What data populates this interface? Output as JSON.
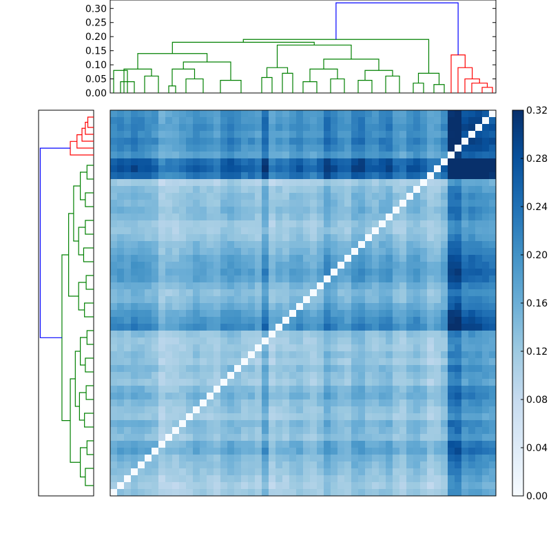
{
  "chart_data": [
    {
      "type": "dendrogram",
      "panel": "top",
      "axis": {
        "ylim": [
          0,
          0.33
        ],
        "ticks": [
          0,
          0.05,
          0.1,
          0.15,
          0.2,
          0.25,
          0.3
        ],
        "tick_labels": [
          "0.00",
          "0.05",
          "0.10",
          "0.15",
          "0.20",
          "0.25",
          "0.30"
        ]
      },
      "n_leaves": 56,
      "link_colors": {
        "left_cluster": "#008000",
        "right_cluster": "#ff0000",
        "root": "#0000ff"
      },
      "merges": [
        {
          "a": [
            0,
            0
          ],
          "b": [
            2,
            2
          ],
          "h": 0.08,
          "c": "#008000"
        },
        {
          "a": [
            1,
            1
          ],
          "b": [
            3,
            3
          ],
          "h": 0.04,
          "c": "#008000"
        },
        {
          "a": [
            4,
            5
          ],
          "b": [
            6,
            7
          ],
          "h": 0.06,
          "c": "#008000"
        },
        {
          "a": [
            0,
            3
          ],
          "b": [
            4,
            7
          ],
          "h": 0.085,
          "c": "#008000"
        },
        {
          "a": [
            8,
            8
          ],
          "b": [
            9,
            9
          ],
          "h": 0.025,
          "c": "#008000"
        },
        {
          "a": [
            10,
            11
          ],
          "b": [
            12,
            14
          ],
          "h": 0.05,
          "c": "#008000"
        },
        {
          "a": [
            8,
            9
          ],
          "b": [
            10,
            14
          ],
          "h": 0.085,
          "c": "#008000"
        },
        {
          "a": [
            15,
            16
          ],
          "b": [
            17,
            20
          ],
          "h": 0.045,
          "c": "#008000"
        },
        {
          "a": [
            8,
            14
          ],
          "b": [
            15,
            20
          ],
          "h": 0.11,
          "c": "#008000"
        },
        {
          "a": [
            0,
            7
          ],
          "b": [
            8,
            20
          ],
          "h": 0.14,
          "c": "#008000"
        },
        {
          "a": [
            21,
            22
          ],
          "b": [
            23,
            23
          ],
          "h": 0.055,
          "c": "#008000"
        },
        {
          "a": [
            24,
            25
          ],
          "b": [
            26,
            26
          ],
          "h": 0.07,
          "c": "#008000"
        },
        {
          "a": [
            21,
            23
          ],
          "b": [
            24,
            26
          ],
          "h": 0.09,
          "c": "#008000"
        },
        {
          "a": [
            27,
            28
          ],
          "b": [
            29,
            30
          ],
          "h": 0.04,
          "c": "#008000"
        },
        {
          "a": [
            31,
            32
          ],
          "b": [
            33,
            34
          ],
          "h": 0.05,
          "c": "#008000"
        },
        {
          "a": [
            27,
            30
          ],
          "b": [
            31,
            34
          ],
          "h": 0.085,
          "c": "#008000"
        },
        {
          "a": [
            35,
            36
          ],
          "b": [
            37,
            38
          ],
          "h": 0.045,
          "c": "#008000"
        },
        {
          "a": [
            39,
            40
          ],
          "b": [
            41,
            42
          ],
          "h": 0.06,
          "c": "#008000"
        },
        {
          "a": [
            35,
            38
          ],
          "b": [
            39,
            42
          ],
          "h": 0.08,
          "c": "#008000"
        },
        {
          "a": [
            27,
            34
          ],
          "b": [
            35,
            42
          ],
          "h": 0.12,
          "c": "#008000"
        },
        {
          "a": [
            21,
            26
          ],
          "b": [
            27,
            42
          ],
          "h": 0.17,
          "c": "#008000"
        },
        {
          "a": [
            0,
            20
          ],
          "b": [
            21,
            42
          ],
          "h": 0.18,
          "c": "#008000"
        },
        {
          "a": [
            43,
            44
          ],
          "b": [
            45,
            45
          ],
          "h": 0.035,
          "c": "#008000"
        },
        {
          "a": [
            46,
            47
          ],
          "b": [
            48,
            48
          ],
          "h": 0.03,
          "c": "#008000"
        },
        {
          "a": [
            43,
            45
          ],
          "b": [
            46,
            48
          ],
          "h": 0.07,
          "c": "#008000"
        },
        {
          "a": [
            0,
            42
          ],
          "b": [
            43,
            48
          ],
          "h": 0.19,
          "c": "#008000"
        },
        {
          "a": [
            53,
            54
          ],
          "b": [
            55,
            55
          ],
          "h": 0.02,
          "c": "#ff0000"
        },
        {
          "a": [
            52,
            52
          ],
          "b": [
            53,
            55
          ],
          "h": 0.035,
          "c": "#ff0000"
        },
        {
          "a": [
            51,
            51
          ],
          "b": [
            52,
            55
          ],
          "h": 0.05,
          "c": "#ff0000"
        },
        {
          "a": [
            50,
            50
          ],
          "b": [
            51,
            55
          ],
          "h": 0.09,
          "c": "#ff0000"
        },
        {
          "a": [
            49,
            49
          ],
          "b": [
            50,
            55
          ],
          "h": 0.135,
          "c": "#ff0000"
        },
        {
          "a": [
            0,
            48
          ],
          "b": [
            49,
            55
          ],
          "h": 0.32,
          "c": "#0000ff"
        }
      ]
    },
    {
      "type": "dendrogram",
      "panel": "left",
      "orientation": "left",
      "n_leaves": 56,
      "merges": [
        {
          "a": [
            0,
            1
          ],
          "b": [
            2,
            2
          ],
          "h": 0.035,
          "c": "#ff0000"
        },
        {
          "a": [
            3,
            3
          ],
          "b": [
            0,
            2
          ],
          "h": 0.05,
          "c": "#ff0000"
        },
        {
          "a": [
            4,
            4
          ],
          "b": [
            0,
            3
          ],
          "h": 0.07,
          "c": "#ff0000"
        },
        {
          "a": [
            5,
            5
          ],
          "b": [
            0,
            4
          ],
          "h": 0.1,
          "c": "#ff0000"
        },
        {
          "a": [
            6,
            6
          ],
          "b": [
            0,
            5
          ],
          "h": 0.14,
          "c": "#ff0000"
        },
        {
          "a": [
            7,
            8
          ],
          "b": [
            9,
            10
          ],
          "h": 0.04,
          "c": "#008000"
        },
        {
          "a": [
            11,
            12
          ],
          "b": [
            13,
            14
          ],
          "h": 0.05,
          "c": "#008000"
        },
        {
          "a": [
            7,
            10
          ],
          "b": [
            11,
            14
          ],
          "h": 0.08,
          "c": "#008000"
        },
        {
          "a": [
            15,
            16
          ],
          "b": [
            17,
            18
          ],
          "h": 0.05,
          "c": "#008000"
        },
        {
          "a": [
            19,
            20
          ],
          "b": [
            21,
            22
          ],
          "h": 0.06,
          "c": "#008000"
        },
        {
          "a": [
            15,
            18
          ],
          "b": [
            19,
            22
          ],
          "h": 0.09,
          "c": "#008000"
        },
        {
          "a": [
            7,
            14
          ],
          "b": [
            15,
            22
          ],
          "h": 0.12,
          "c": "#008000"
        },
        {
          "a": [
            23,
            24
          ],
          "b": [
            25,
            26
          ],
          "h": 0.045,
          "c": "#008000"
        },
        {
          "a": [
            27,
            28
          ],
          "b": [
            29,
            30
          ],
          "h": 0.055,
          "c": "#008000"
        },
        {
          "a": [
            23,
            26
          ],
          "b": [
            27,
            30
          ],
          "h": 0.09,
          "c": "#008000"
        },
        {
          "a": [
            7,
            22
          ],
          "b": [
            23,
            30
          ],
          "h": 0.15,
          "c": "#008000"
        },
        {
          "a": [
            31,
            32
          ],
          "b": [
            33,
            34
          ],
          "h": 0.04,
          "c": "#008000"
        },
        {
          "a": [
            35,
            36
          ],
          "b": [
            37,
            38
          ],
          "h": 0.05,
          "c": "#008000"
        },
        {
          "a": [
            31,
            34
          ],
          "b": [
            35,
            38
          ],
          "h": 0.08,
          "c": "#008000"
        },
        {
          "a": [
            39,
            40
          ],
          "b": [
            41,
            42
          ],
          "h": 0.045,
          "c": "#008000"
        },
        {
          "a": [
            43,
            44
          ],
          "b": [
            45,
            46
          ],
          "h": 0.055,
          "c": "#008000"
        },
        {
          "a": [
            39,
            42
          ],
          "b": [
            43,
            46
          ],
          "h": 0.085,
          "c": "#008000"
        },
        {
          "a": [
            31,
            38
          ],
          "b": [
            39,
            46
          ],
          "h": 0.11,
          "c": "#008000"
        },
        {
          "a": [
            47,
            48
          ],
          "b": [
            49,
            50
          ],
          "h": 0.04,
          "c": "#008000"
        },
        {
          "a": [
            51,
            52
          ],
          "b": [
            53,
            55
          ],
          "h": 0.05,
          "c": "#008000"
        },
        {
          "a": [
            47,
            50
          ],
          "b": [
            51,
            55
          ],
          "h": 0.08,
          "c": "#008000"
        },
        {
          "a": [
            31,
            46
          ],
          "b": [
            47,
            55
          ],
          "h": 0.14,
          "c": "#008000"
        },
        {
          "a": [
            7,
            30
          ],
          "b": [
            31,
            55
          ],
          "h": 0.19,
          "c": "#008000"
        },
        {
          "a": [
            0,
            6
          ],
          "b": [
            7,
            55
          ],
          "h": 0.32,
          "c": "#0000ff"
        }
      ]
    },
    {
      "type": "heatmap",
      "rows": 56,
      "cols": 56,
      "vmin": 0,
      "vmax": 0.32,
      "colormap": "Blues",
      "cluster_order": "top: columns (blue-root split 49|7), left: rows (red group 7 at top)",
      "colorbar": {
        "ticks": [
          0,
          0.04,
          0.08,
          0.12,
          0.16,
          0.2,
          0.24,
          0.28,
          0.32
        ],
        "tick_labels": [
          "0.00",
          "0.04",
          "0.08",
          "0.12",
          "0.16",
          "0.20",
          "0.24",
          "0.28",
          "0.32"
        ]
      },
      "row_profile": [
        0.16,
        0.17,
        0.18,
        0.16,
        0.19,
        0.17,
        0.14,
        0.27,
        0.29,
        0.24,
        0.05,
        0.07,
        0.08,
        0.08,
        0.09,
        0.08,
        0.06,
        0.06,
        0.07,
        0.09,
        0.1,
        0.12,
        0.13,
        0.14,
        0.13,
        0.1,
        0.08,
        0.09,
        0.11,
        0.14,
        0.16,
        0.18,
        0.07,
        0.06,
        0.06,
        0.07,
        0.06,
        0.08,
        0.07,
        0.06,
        0.09,
        0.1,
        0.08,
        0.07,
        0.06,
        0.09,
        0.08,
        0.07,
        0.11,
        0.12,
        0.09,
        0.08,
        0.07,
        0.06,
        0.05,
        0.06
      ],
      "col_profile": [
        0.12,
        0.13,
        0.12,
        0.14,
        0.13,
        0.12,
        0.11,
        0.07,
        0.08,
        0.08,
        0.09,
        0.1,
        0.12,
        0.11,
        0.1,
        0.09,
        0.12,
        0.13,
        0.12,
        0.1,
        0.11,
        0.09,
        0.17,
        0.08,
        0.1,
        0.09,
        0.11,
        0.12,
        0.1,
        0.09,
        0.11,
        0.16,
        0.13,
        0.11,
        0.1,
        0.14,
        0.15,
        0.12,
        0.11,
        0.13,
        0.14,
        0.1,
        0.09,
        0.12,
        0.13,
        0.11,
        0.08,
        0.09,
        0.12,
        0.3,
        0.32,
        0.22,
        0.24,
        0.23,
        0.21,
        0.2
      ]
    }
  ]
}
